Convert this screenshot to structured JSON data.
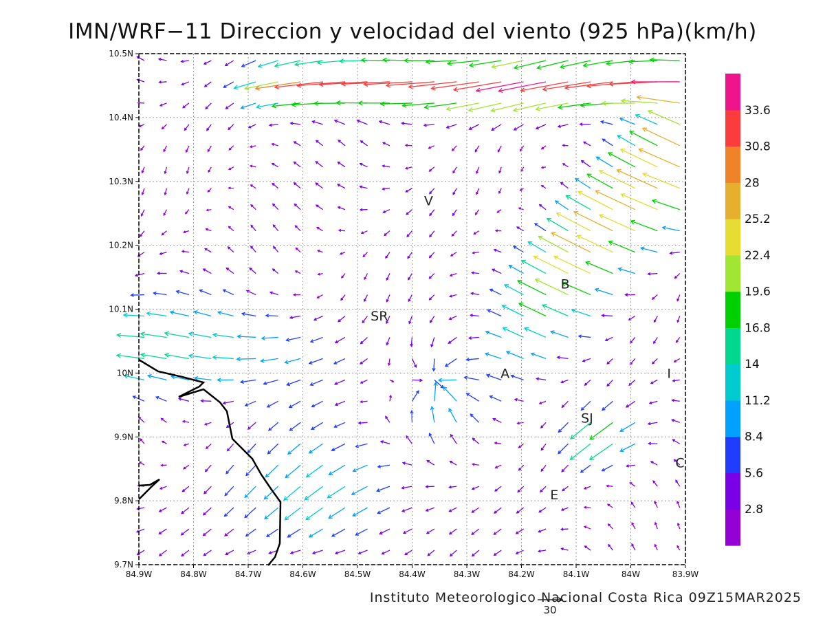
{
  "title": "IMN/WRF−11 Direccion y velocidad del viento (925 hPa)(km/h)",
  "credit": "Instituto Meteorologico Nacional Costa Rica 09Z15MAR2025",
  "map": {
    "lon_range": [
      -84.9,
      -83.9
    ],
    "lat_range": [
      9.7,
      10.5
    ],
    "lon_ticks": [
      "84.9W",
      "84.8W",
      "84.7W",
      "84.6W",
      "84.5W",
      "84.4W",
      "84.3W",
      "84.2W",
      "84.1W",
      "84W",
      "83.9W"
    ],
    "lat_ticks": [
      "9.7N",
      "9.8N",
      "9.9N",
      "10N",
      "10.1N",
      "10.2N",
      "10.3N",
      "10.4N",
      "10.5N"
    ],
    "grid": "dotted",
    "stations": [
      {
        "label": "V",
        "lon": -84.37,
        "lat": 10.27
      },
      {
        "label": "SR",
        "lon": -84.46,
        "lat": 10.09
      },
      {
        "label": "B",
        "lon": -84.12,
        "lat": 10.14
      },
      {
        "label": "A",
        "lon": -84.23,
        "lat": 10.0
      },
      {
        "label": "SJ",
        "lon": -84.08,
        "lat": 9.93
      },
      {
        "label": "C",
        "lon": -83.91,
        "lat": 9.86
      },
      {
        "label": "E",
        "lon": -84.14,
        "lat": 9.81
      },
      {
        "label": "I",
        "lon": -83.93,
        "lat": 10.0
      }
    ],
    "reference_vector": {
      "label": "30",
      "speed": 30
    }
  },
  "colorbar": {
    "levels": [
      "2.8",
      "5.6",
      "8.4",
      "11.2",
      "14",
      "16.8",
      "19.6",
      "22.4",
      "25.2",
      "28",
      "30.8",
      "33.6"
    ],
    "colors": [
      "#9400d3",
      "#7a00e6",
      "#1f3cff",
      "#00a0ff",
      "#00ccd0",
      "#00d890",
      "#00d000",
      "#a0e632",
      "#e6dc32",
      "#e6af2d",
      "#f08228",
      "#fa3c3c",
      "#f0148c"
    ]
  }
}
